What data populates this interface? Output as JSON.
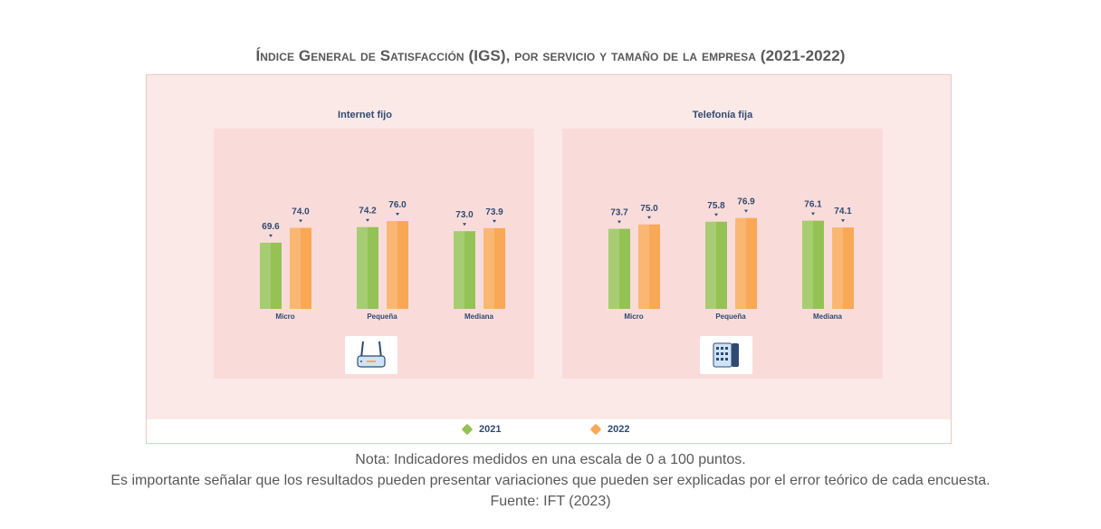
{
  "title": "Índice General de Satisfacción (IGS), por servicio y tamaño de la empresa (2021-2022)",
  "colors": {
    "y2021": "#94c255",
    "y2022": "#f9a855",
    "panel": "#f9dcd9",
    "frame": "#fbe9e7",
    "text": "#2f4a72"
  },
  "chart_data": [
    {
      "type": "bar",
      "title": "Internet fijo",
      "categories": [
        "Micro",
        "Pequeña",
        "Mediana"
      ],
      "series": [
        {
          "name": "2021",
          "values": [
            69.6,
            74.2,
            73.0
          ],
          "labels": [
            "69.6",
            "74.2",
            "73.0"
          ]
        },
        {
          "name": "2022",
          "values": [
            74.0,
            76.0,
            73.9
          ],
          "labels": [
            "74.0",
            "76.0",
            "73.9"
          ]
        }
      ],
      "icon": "router-icon"
    },
    {
      "type": "bar",
      "title": "Telefonía fija",
      "categories": [
        "Micro",
        "Pequeña",
        "Mediana"
      ],
      "series": [
        {
          "name": "2021",
          "values": [
            73.7,
            75.8,
            76.1
          ],
          "labels": [
            "73.7",
            "75.8",
            "76.1"
          ]
        },
        {
          "name": "2022",
          "values": [
            75.0,
            76.9,
            74.1
          ],
          "labels": [
            "75.0",
            "76.9",
            "74.1"
          ]
        }
      ],
      "icon": "desk-phone-icon"
    }
  ],
  "legend": [
    "2021",
    "2022"
  ],
  "notes": [
    "Nota: Indicadores medidos en una escala de 0 a 100 puntos.",
    "Es importante señalar que los resultados pueden presentar variaciones que pueden ser explicadas por el error teórico de cada encuesta.",
    "Fuente: IFT (2023)"
  ]
}
